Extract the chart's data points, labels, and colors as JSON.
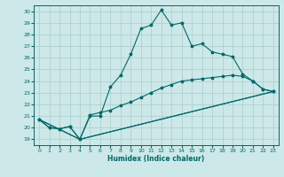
{
  "title": "",
  "xlabel": "Humidex (Indice chaleur)",
  "background_color": "#cde8e8",
  "grid_color": "#aacccc",
  "line_color": "#006868",
  "xlim": [
    -0.5,
    23.5
  ],
  "ylim": [
    18.5,
    30.5
  ],
  "yticks": [
    19,
    20,
    21,
    22,
    23,
    24,
    25,
    26,
    27,
    28,
    29,
    30
  ],
  "xticks": [
    0,
    1,
    2,
    3,
    4,
    5,
    6,
    7,
    8,
    9,
    10,
    11,
    12,
    13,
    14,
    15,
    16,
    17,
    18,
    19,
    20,
    21,
    22,
    23
  ],
  "line1_x": [
    0,
    1,
    2,
    3,
    4,
    5,
    6,
    7,
    8,
    9,
    10,
    11,
    12,
    13,
    14,
    15,
    16,
    17,
    18,
    19,
    20,
    21,
    22,
    23
  ],
  "line1_y": [
    20.7,
    20.0,
    19.9,
    20.1,
    19.0,
    21.0,
    21.0,
    23.5,
    24.5,
    26.3,
    28.5,
    28.8,
    30.1,
    28.8,
    29.0,
    27.0,
    27.2,
    26.5,
    26.3,
    26.1,
    24.6,
    24.0,
    23.3,
    23.1
  ],
  "line2_x": [
    0,
    1,
    2,
    3,
    4,
    5,
    6,
    7,
    8,
    9,
    10,
    11,
    12,
    13,
    14,
    15,
    16,
    17,
    18,
    19,
    20,
    21,
    22,
    23
  ],
  "line2_y": [
    20.7,
    20.0,
    19.9,
    20.1,
    19.0,
    21.1,
    21.3,
    21.5,
    21.9,
    22.2,
    22.6,
    23.0,
    23.4,
    23.7,
    24.0,
    24.1,
    24.2,
    24.3,
    24.4,
    24.5,
    24.4,
    24.0,
    23.3,
    23.1
  ],
  "line3_x": [
    0,
    4,
    23
  ],
  "line3_y": [
    20.7,
    19.0,
    23.1
  ],
  "line4_x": [
    0,
    4,
    23
  ],
  "line4_y": [
    20.7,
    19.0,
    23.1
  ]
}
